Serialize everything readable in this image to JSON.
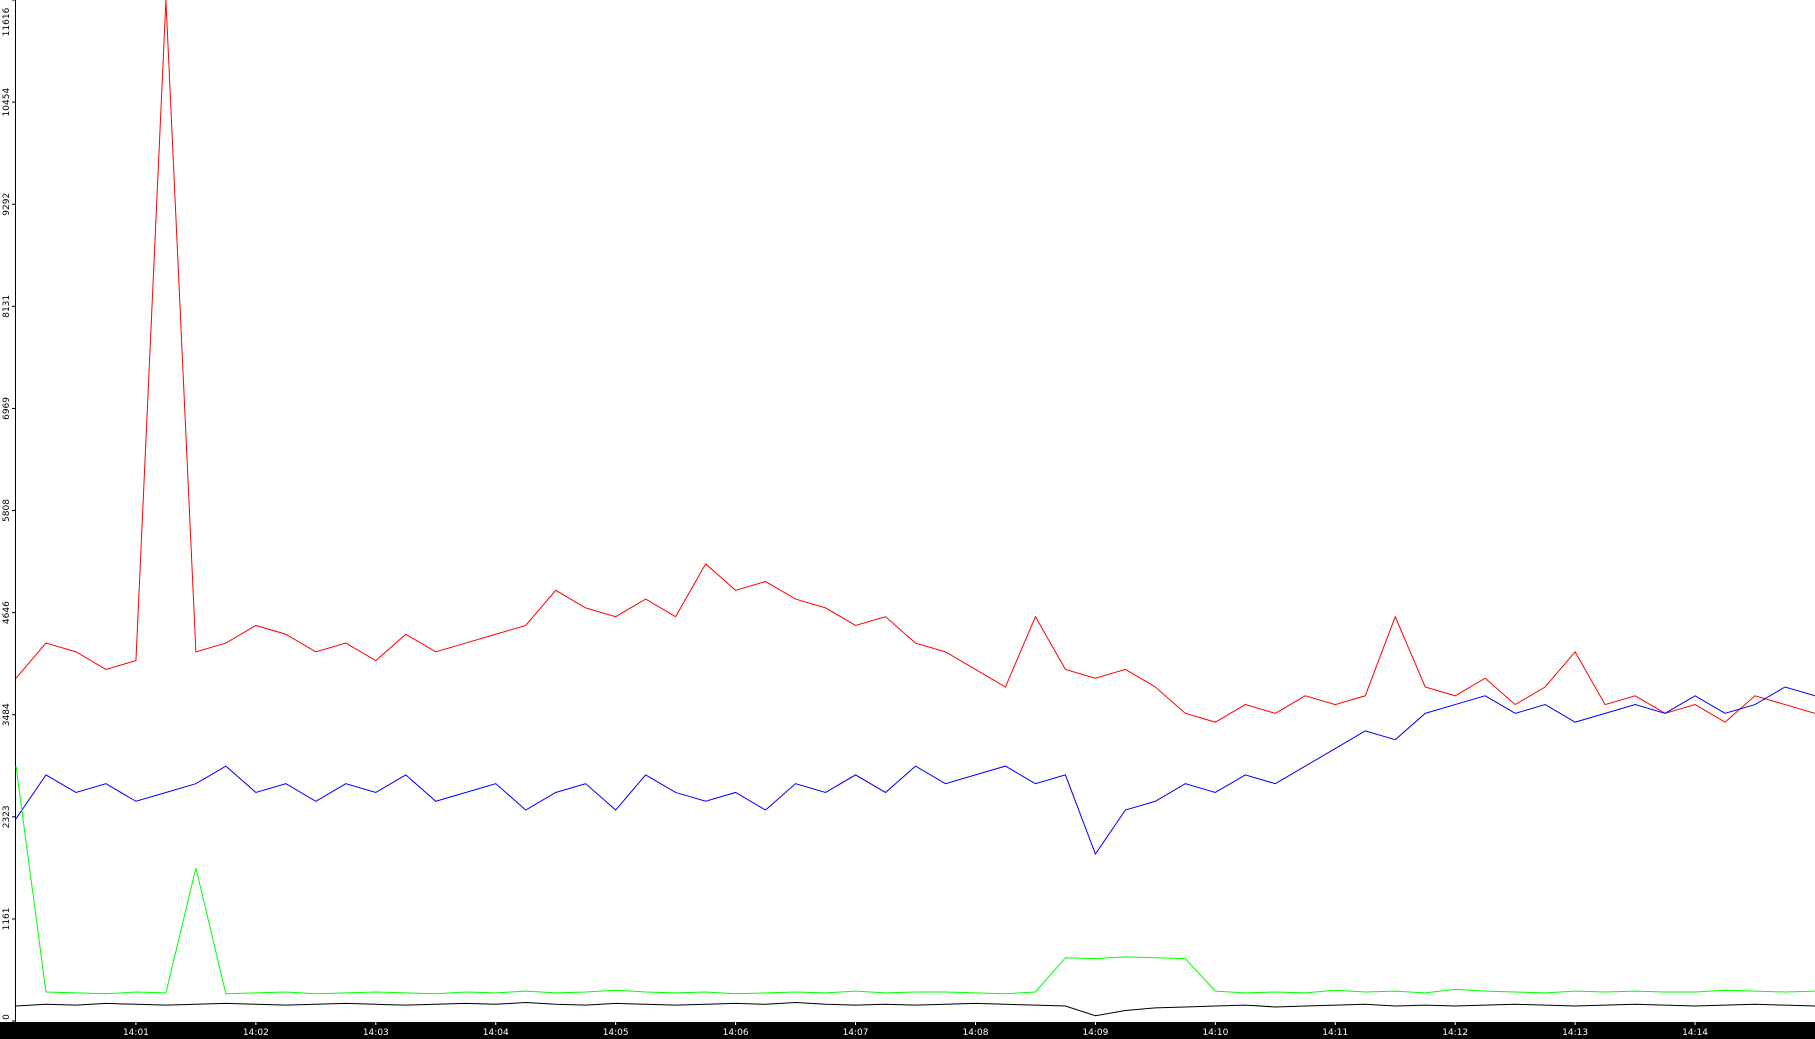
{
  "chart_data": {
    "type": "line",
    "x": [
      0,
      0.25,
      0.5,
      0.75,
      1,
      1.25,
      1.5,
      1.75,
      2,
      2.25,
      2.5,
      2.75,
      3,
      3.25,
      3.5,
      3.75,
      4,
      4.25,
      4.5,
      4.75,
      5,
      5.25,
      5.5,
      5.75,
      6,
      6.25,
      6.5,
      6.75,
      7,
      7.25,
      7.5,
      7.75,
      8,
      8.25,
      8.5,
      8.75,
      9,
      9.25,
      9.5,
      9.75,
      10,
      10.25,
      10.5,
      10.75,
      11,
      11.25,
      11.5,
      11.75,
      12,
      12.25,
      12.5,
      12.75,
      13,
      13.25,
      13.5,
      13.75,
      14,
      14.25,
      14.5,
      14.75,
      15
    ],
    "series": [
      {
        "color": "#ff0000",
        "values": [
          3900,
          4300,
          4200,
          4000,
          4100,
          11616,
          4200,
          4300,
          4500,
          4400,
          4200,
          4300,
          4100,
          4400,
          4200,
          4300,
          4400,
          4500,
          4900,
          4700,
          4600,
          4800,
          4600,
          5200,
          4900,
          5000,
          4800,
          4700,
          4500,
          4600,
          4300,
          4200,
          4000,
          3800,
          4600,
          4000,
          3900,
          4000,
          3800,
          3500,
          3400,
          3600,
          3500,
          3700,
          3600,
          3700,
          4600,
          3800,
          3700,
          3900,
          3600,
          3800,
          4200,
          3600,
          3700,
          3500,
          3600,
          3400,
          3700,
          3600,
          3500
        ]
      },
      {
        "color": "#0000ff",
        "values": [
          2300,
          2800,
          2600,
          2700,
          2500,
          2600,
          2700,
          2900,
          2600,
          2700,
          2500,
          2700,
          2600,
          2800,
          2500,
          2600,
          2700,
          2400,
          2600,
          2700,
          2400,
          2800,
          2600,
          2500,
          2600,
          2400,
          2700,
          2600,
          2800,
          2600,
          2900,
          2700,
          2800,
          2900,
          2700,
          2800,
          1900,
          2400,
          2500,
          2700,
          2600,
          2800,
          2700,
          2900,
          3100,
          3300,
          3200,
          3500,
          3600,
          3700,
          3500,
          3600,
          3400,
          3500,
          3600,
          3500,
          3700,
          3500,
          3600,
          3800,
          3700
        ]
      },
      {
        "color": "#00ff00",
        "values": [
          2900,
          330,
          320,
          310,
          330,
          320,
          1740,
          310,
          320,
          330,
          310,
          320,
          330,
          320,
          310,
          330,
          320,
          340,
          320,
          330,
          350,
          330,
          320,
          330,
          310,
          320,
          330,
          320,
          340,
          320,
          330,
          330,
          320,
          310,
          330,
          720,
          710,
          730,
          720,
          710,
          340,
          320,
          330,
          320,
          350,
          330,
          340,
          320,
          360,
          340,
          330,
          320,
          340,
          330,
          340,
          330,
          330,
          350,
          340,
          330,
          340
        ]
      },
      {
        "color": "#000000",
        "values": [
          170,
          190,
          180,
          200,
          190,
          180,
          190,
          200,
          190,
          180,
          190,
          200,
          190,
          180,
          190,
          200,
          190,
          210,
          190,
          180,
          200,
          190,
          180,
          190,
          200,
          190,
          210,
          190,
          180,
          190,
          180,
          190,
          200,
          190,
          180,
          170,
          60,
          120,
          150,
          160,
          170,
          180,
          160,
          170,
          180,
          190,
          170,
          180,
          170,
          180,
          190,
          180,
          170,
          180,
          190,
          180,
          170,
          180,
          190,
          180,
          170
        ]
      }
    ],
    "xlim": [
      0,
      15
    ],
    "xticks": [
      {
        "value": 1,
        "label": "14:01"
      },
      {
        "value": 2,
        "label": "14:02"
      },
      {
        "value": 3,
        "label": "14:03"
      },
      {
        "value": 4,
        "label": "14:04"
      },
      {
        "value": 5,
        "label": "14:05"
      },
      {
        "value": 6,
        "label": "14:06"
      },
      {
        "value": 7,
        "label": "14:07"
      },
      {
        "value": 8,
        "label": "14:08"
      },
      {
        "value": 9,
        "label": "14:09"
      },
      {
        "value": 10,
        "label": "14:10"
      },
      {
        "value": 11,
        "label": "14:11"
      },
      {
        "value": 12,
        "label": "14:12"
      },
      {
        "value": 13,
        "label": "14:13"
      },
      {
        "value": 14,
        "label": "14:14"
      }
    ],
    "ylim": [
      0,
      11616
    ],
    "yticks": [
      0,
      1161,
      2323,
      3484,
      4646,
      5808,
      6969,
      8131,
      9292,
      10454,
      11616
    ]
  }
}
